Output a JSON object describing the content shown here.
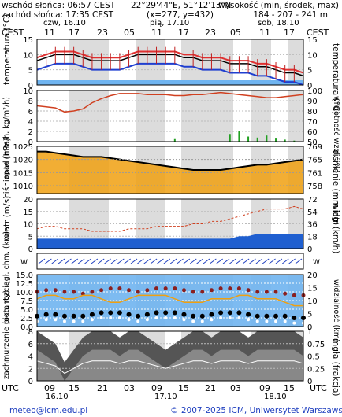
{
  "header": {
    "sunrise": "wschód słońca: 06:57 CEST",
    "sunset": "zachód słońca: 17:35 CEST",
    "coords": "22°29'44\"E, 51°12'13\"N",
    "grid": "(x=277, y=432)",
    "height_title": "wysokość (min, środek, max)",
    "height_values": "184 - 207 - 241 m"
  },
  "time_axis": {
    "tz_top": "CEST",
    "tz_bottom": "UTC",
    "days_top": [
      "czw, 16.10",
      "pią, 17.10",
      "sob, 18.10"
    ],
    "hours_top": [
      "11",
      "17",
      "23",
      "05",
      "11",
      "17",
      "23",
      "05",
      "11",
      "17"
    ],
    "hours_bottom": [
      "09",
      "15",
      "21",
      "03",
      "09",
      "15",
      "21",
      "03",
      "09",
      "15"
    ],
    "days_bottom": [
      "16.10",
      "17.10",
      "18.10"
    ]
  },
  "colors": {
    "temp_max": "#e03030",
    "temp_min": "#1f3fd0",
    "temp_mid": "#000000",
    "humidity": "#d04020",
    "rain": "#22a022",
    "wind": "#1f5fd0",
    "gust": "#d04020",
    "pressure_fill": "#f0a010",
    "cloud_base": "#c04040",
    "visibility": "#f0a010"
  },
  "footer": {
    "email": "meteo@icm.edu.pl",
    "copyright": "© 2007-2025 ICM, Uniwersytet Warszawski"
  },
  "chart_data": [
    {
      "type": "line",
      "name": "temperatura",
      "ylabel_left": "temperatura (°C)",
      "ylabel_right": "temperatura (°C)",
      "ylim": [
        0,
        15
      ],
      "yticks": [
        0,
        5,
        10,
        15
      ],
      "series": [
        {
          "name": "max",
          "values": [
            9,
            10,
            11,
            11,
            11,
            10,
            9,
            9,
            9,
            9,
            10,
            11,
            11,
            11,
            11,
            11,
            10,
            10,
            9,
            9,
            9,
            8,
            8,
            8,
            7,
            7,
            6,
            5,
            5,
            4
          ]
        },
        {
          "name": "mid",
          "values": [
            8,
            9,
            10,
            10,
            10,
            9,
            8,
            8,
            8,
            8,
            9,
            10,
            10,
            10,
            10,
            10,
            9,
            9,
            8,
            8,
            8,
            7,
            7,
            7,
            6,
            6,
            5,
            4,
            4,
            3
          ]
        },
        {
          "name": "min",
          "values": [
            5,
            6,
            7,
            7,
            7,
            6,
            5,
            5,
            5,
            5,
            6,
            7,
            7,
            7,
            7,
            7,
            6,
            6,
            5,
            5,
            5,
            4,
            4,
            4,
            3,
            3,
            2,
            1,
            1,
            0
          ]
        }
      ]
    },
    {
      "type": "bar",
      "name": "opad",
      "ylabel_left": "opad (mm/h, kg/m²/h)",
      "ylabel_right": "wilgotność wzgl. (%)",
      "ylim": [
        0,
        10
      ],
      "yticks": [
        0,
        2,
        4,
        6,
        8,
        10
      ],
      "y2lim": [
        50,
        100
      ],
      "y2ticks": [
        50,
        60,
        70,
        80,
        90,
        100
      ],
      "series": [
        {
          "name": "rain",
          "values": [
            0,
            0,
            0,
            0,
            0,
            0,
            0,
            0,
            0,
            0,
            0,
            0,
            0,
            0,
            0,
            0.5,
            0,
            0,
            0,
            0,
            0,
            1.5,
            2,
            1,
            0.8,
            1.2,
            0.6,
            0.4,
            0.2,
            0
          ]
        },
        {
          "name": "humidity",
          "values": [
            85,
            84,
            83,
            79,
            80,
            82,
            88,
            92,
            95,
            97,
            97,
            97,
            96,
            96,
            96,
            95,
            95,
            96,
            96,
            97,
            98,
            97,
            96,
            95,
            94,
            93,
            93,
            94,
            95,
            96
          ]
        }
      ]
    },
    {
      "type": "area",
      "name": "ciśnienie",
      "ylabel_left": "ciśnienie (hPa)",
      "ylabel_right": "ciśnienie (mm Hg)",
      "ylim": [
        1007,
        1025
      ],
      "yticks": [
        1010,
        1015,
        1020,
        1025
      ],
      "y2ticks": [
        758,
        761,
        765,
        769
      ],
      "values": [
        1023,
        1023,
        1022.5,
        1022,
        1021.5,
        1021,
        1021,
        1021,
        1020.5,
        1020,
        1019.5,
        1019,
        1018.5,
        1018,
        1017.5,
        1017,
        1016.5,
        1016,
        1016,
        1016,
        1016,
        1016.5,
        1017,
        1017.5,
        1018,
        1018,
        1018.5,
        1019,
        1019.5,
        1020
      ]
    },
    {
      "type": "line",
      "name": "wiatr",
      "ylabel_left": "wiatr (m/s)",
      "ylabel_right": "wiatr (km/h)",
      "ylim": [
        0,
        20
      ],
      "yticks": [
        0,
        5,
        10,
        15,
        20
      ],
      "y2ticks": [
        0,
        18,
        36,
        54,
        72
      ],
      "series": [
        {
          "name": "speed",
          "values": [
            4,
            4,
            4,
            4,
            4,
            4,
            4,
            4,
            4,
            4,
            4,
            4,
            4,
            4,
            4,
            4,
            4,
            4,
            4,
            4,
            4,
            4,
            5,
            5,
            6,
            6,
            6,
            6,
            6,
            6
          ]
        },
        {
          "name": "gust",
          "values": [
            8,
            9,
            9,
            8,
            8,
            8,
            7,
            7,
            7,
            7,
            8,
            8,
            8,
            9,
            9,
            9,
            9,
            10,
            10,
            11,
            11,
            12,
            13,
            14,
            15,
            16,
            16,
            16,
            17,
            16
          ]
        }
      ]
    },
    {
      "type": "scatter",
      "name": "pion. rozciągł. chm.",
      "ylabel_left": "pion. rozciągł. chm. (km)",
      "ylabel_right": "widzialność (km)",
      "ylim": [
        0,
        15
      ],
      "yticks": [
        0,
        2.5,
        5,
        7.5,
        10,
        12.5,
        15
      ],
      "ytick_labels": [
        "0.0",
        "2.5",
        "5.0",
        "7.5",
        "10.0",
        "12.5",
        "15.0"
      ],
      "y2ticks": [
        0,
        5,
        10,
        15,
        20
      ],
      "series": [
        {
          "name": "cloud_top",
          "values": [
            7,
            7.5,
            7.5,
            7,
            7,
            6.5,
            7,
            7.5,
            8,
            8,
            7.5,
            7,
            7.5,
            8,
            8,
            8,
            7.5,
            7,
            7,
            7.5,
            8,
            8,
            8,
            7.5,
            7,
            7,
            7,
            6.5,
            6,
            6
          ]
        },
        {
          "name": "cloud_base",
          "values": [
            3,
            3.5,
            3.5,
            3,
            3,
            3,
            3.5,
            4,
            4,
            4,
            3.5,
            3,
            3.5,
            4,
            4,
            4,
            3.5,
            3,
            3,
            3.5,
            4,
            4,
            4,
            3.5,
            3,
            3,
            3,
            3,
            2.5,
            2.5
          ]
        },
        {
          "name": "visibility",
          "values": [
            8,
            9,
            9,
            8,
            8,
            9,
            9,
            8,
            7,
            7,
            8,
            9,
            9,
            9,
            9,
            8,
            7,
            7,
            7,
            8,
            8,
            8,
            9,
            9,
            8,
            8,
            8,
            7,
            6,
            6
          ]
        }
      ]
    },
    {
      "type": "area",
      "name": "zachmurzenie",
      "ylabel_left": "zachmurzenie (oktanty)",
      "ylabel_right": "mgła (frakcja)",
      "ylim": [
        0,
        8
      ],
      "yticks": [
        0,
        2,
        4,
        6,
        8
      ],
      "y2ticks": [
        0,
        0.25,
        0.5,
        0.75,
        1.0
      ],
      "y2tick_labels": [
        "0",
        "0.25",
        "0.5",
        "0.75",
        "1"
      ],
      "values": [
        8,
        7,
        6,
        3,
        5,
        7,
        8,
        8,
        8,
        7,
        8,
        8,
        7,
        6,
        5,
        6,
        7,
        8,
        8,
        7,
        8,
        8,
        8,
        7,
        8,
        8,
        8,
        8,
        8,
        7
      ]
    }
  ]
}
